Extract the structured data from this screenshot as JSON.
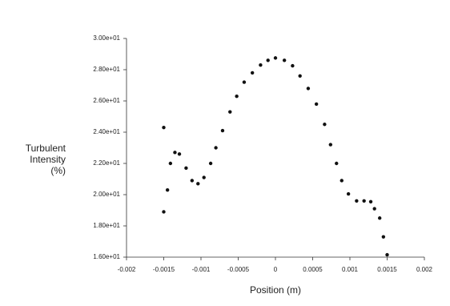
{
  "chart_data": {
    "type": "scatter",
    "ylabel": [
      "Turbulent",
      "Intensity",
      "(%)"
    ],
    "xlabel": "Position (m)",
    "color": "#111111",
    "x": [
      -0.0015,
      -0.0015,
      -0.00145,
      -0.00141,
      -0.00135,
      -0.00129,
      -0.0012,
      -0.00112,
      -0.00104,
      -0.00096,
      -0.00087,
      -0.0008,
      -0.00071,
      -0.00061,
      -0.00052,
      -0.00042,
      -0.00031,
      -0.0002,
      -0.0001,
      0.0,
      0.00012,
      0.00023,
      0.00033,
      0.00044,
      0.00055,
      0.00066,
      0.00074,
      0.00082,
      0.00089,
      0.00098,
      0.00109,
      0.00119,
      0.00128,
      0.00133,
      0.0014,
      0.00145,
      0.0015
    ],
    "values": [
      18.9,
      24.3,
      20.3,
      22.0,
      22.7,
      22.6,
      21.7,
      20.9,
      20.7,
      21.1,
      22.0,
      23.0,
      24.1,
      25.3,
      26.3,
      27.2,
      27.8,
      28.3,
      28.6,
      28.75,
      28.6,
      28.25,
      27.6,
      26.8,
      25.8,
      24.5,
      23.2,
      22.0,
      20.9,
      20.05,
      19.6,
      19.6,
      19.55,
      19.1,
      18.5,
      17.3,
      16.15
    ],
    "xlim": [
      -0.002,
      0.002
    ],
    "xticks": [
      -0.002,
      -0.0015,
      -0.001,
      -0.0005,
      0,
      0.0005,
      0.001,
      0.0015,
      0.002
    ],
    "ylim": [
      16,
      30
    ],
    "yticks": [
      {
        "value": 16,
        "label": "1.60e+01"
      },
      {
        "value": 18,
        "label": "1.80e+01"
      },
      {
        "value": 20,
        "label": "2.00e+01"
      },
      {
        "value": 22,
        "label": "2.20e+01"
      },
      {
        "value": 24,
        "label": "2.40e+01"
      },
      {
        "value": 26,
        "label": "2.60e+01"
      },
      {
        "value": 28,
        "label": "2.80e+01"
      },
      {
        "value": 30,
        "label": "3.00e+01"
      }
    ]
  }
}
